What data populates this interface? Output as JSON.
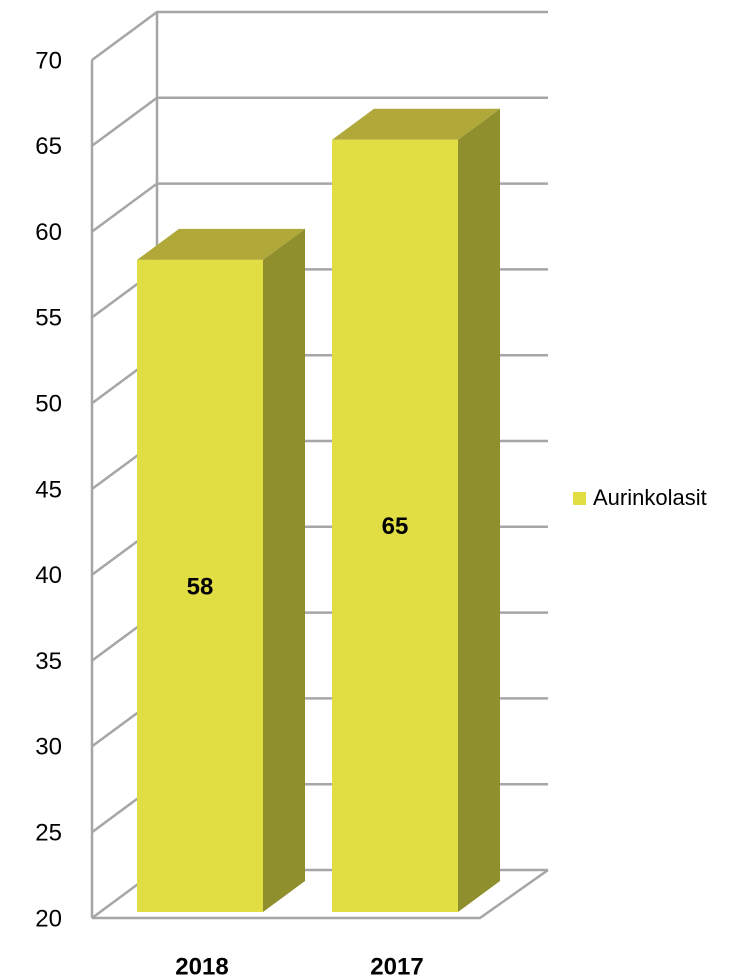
{
  "chart_data": {
    "type": "bar3d",
    "categories": [
      "2018",
      "2017"
    ],
    "series": [
      {
        "name": "Aurinkolasit",
        "color": "#e1de44",
        "values": [
          58,
          65
        ]
      }
    ],
    "ylim": [
      20,
      70
    ],
    "yticks": [
      20,
      25,
      30,
      35,
      40,
      45,
      50,
      55,
      60,
      65,
      70
    ],
    "grid": true,
    "legend": "right"
  }
}
